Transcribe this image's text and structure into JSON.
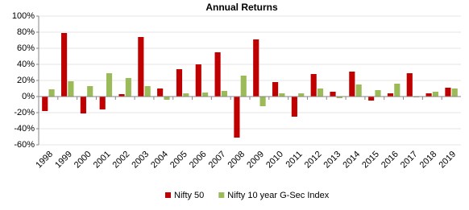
{
  "chart_data": {
    "type": "bar",
    "title": "Annual Returns",
    "categories": [
      "1998",
      "1999",
      "2000",
      "2001",
      "2002",
      "2003",
      "2004",
      "2005",
      "2006",
      "2007",
      "2008",
      "2009",
      "2010",
      "2011",
      "2012",
      "2013",
      "2014",
      "2015",
      "2016",
      "2017",
      "2018",
      "2019"
    ],
    "series": [
      {
        "name": "Nifty 50",
        "color": "#c00000",
        "values": [
          -18,
          79,
          -21,
          -16,
          3,
          74,
          10,
          34,
          40,
          55,
          -51,
          71,
          18,
          -25,
          28,
          6,
          31,
          -5,
          4,
          29,
          4,
          11
        ]
      },
      {
        "name": "Nifty 10 year G-Sec Index",
        "color": "#9bbb59",
        "values": [
          9,
          19,
          13,
          29,
          23,
          13,
          -4,
          4,
          5,
          7,
          26,
          -12,
          4,
          4,
          10,
          -2,
          15,
          8,
          16,
          -1,
          6,
          10
        ]
      }
    ],
    "ylim": [
      -60,
      100
    ],
    "yticks": [
      {
        "value": -60,
        "label": "-60%"
      },
      {
        "value": -40,
        "label": "-40%"
      },
      {
        "value": -20,
        "label": "-20%"
      },
      {
        "value": 0,
        "label": "0%"
      },
      {
        "value": 20,
        "label": "20%"
      },
      {
        "value": 40,
        "label": "40%"
      },
      {
        "value": 60,
        "label": "60%"
      },
      {
        "value": 80,
        "label": "80%"
      },
      {
        "value": 100,
        "label": "100%"
      }
    ],
    "grid": true,
    "legend": "bottom"
  }
}
